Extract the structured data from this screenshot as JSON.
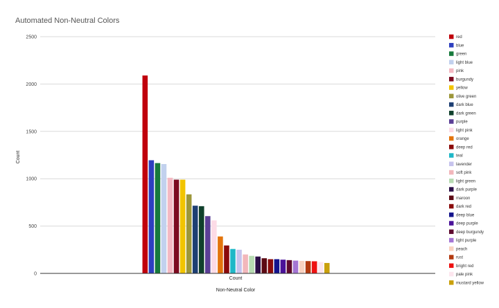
{
  "chart_data": {
    "type": "bar",
    "title": "Automated Non-Neutral Colors",
    "xlabel": "Non-Neutral Color",
    "ylabel": "Count",
    "category_label": "Count",
    "ylim": [
      0,
      2500
    ],
    "yticks": [
      "0",
      "500",
      "1000",
      "1500",
      "2000",
      "2500"
    ],
    "grid": true,
    "legend_position": "right",
    "series": [
      {
        "name": "red",
        "value": 2090,
        "color": "#c0000c"
      },
      {
        "name": "blue",
        "value": 1195,
        "color": "#2e3fbf"
      },
      {
        "name": "green",
        "value": 1165,
        "color": "#177a3c"
      },
      {
        "name": "light blue",
        "value": 1155,
        "color": "#c2d1ee"
      },
      {
        "name": "pink",
        "value": 1010,
        "color": "#f4b9c3"
      },
      {
        "name": "burgundy",
        "value": 990,
        "color": "#7c0a1f"
      },
      {
        "name": "yellow",
        "value": 990,
        "color": "#f2c400"
      },
      {
        "name": "olive green",
        "value": 835,
        "color": "#9d973a"
      },
      {
        "name": "dark blue",
        "value": 715,
        "color": "#1e3f73"
      },
      {
        "name": "dark green",
        "value": 710,
        "color": "#10402c"
      },
      {
        "name": "purple",
        "value": 605,
        "color": "#5b3f96"
      },
      {
        "name": "light pink",
        "value": 560,
        "color": "#fcdbe6"
      },
      {
        "name": "orange",
        "value": 390,
        "color": "#e3740c"
      },
      {
        "name": "deep red",
        "value": 295,
        "color": "#8a0a0a"
      },
      {
        "name": "teal",
        "value": 258,
        "color": "#1fb7c7"
      },
      {
        "name": "lavender",
        "value": 250,
        "color": "#c6c3ed"
      },
      {
        "name": "soft pink",
        "value": 200,
        "color": "#f2b7bb"
      },
      {
        "name": "light green",
        "value": 185,
        "color": "#b7dbb2"
      },
      {
        "name": "dark purple",
        "value": 178,
        "color": "#2c0f48"
      },
      {
        "name": "maroon",
        "value": 160,
        "color": "#5c0a14"
      },
      {
        "name": "dark red",
        "value": 150,
        "color": "#8a0c0c"
      },
      {
        "name": "deep blue",
        "value": 150,
        "color": "#14148c"
      },
      {
        "name": "deep purple",
        "value": 145,
        "color": "#4a1299"
      },
      {
        "name": "deep burgundy",
        "value": 140,
        "color": "#5e0a2f"
      },
      {
        "name": "light purple",
        "value": 135,
        "color": "#a475d4"
      },
      {
        "name": "peach",
        "value": 132,
        "color": "#f9d2c0"
      },
      {
        "name": "rust",
        "value": 130,
        "color": "#b23a10"
      },
      {
        "name": "bright red",
        "value": 128,
        "color": "#ee1111"
      },
      {
        "name": "pale pink",
        "value": 120,
        "color": "#fde6ee"
      },
      {
        "name": "mustard yellow",
        "value": 110,
        "color": "#c9a00c"
      }
    ]
  }
}
